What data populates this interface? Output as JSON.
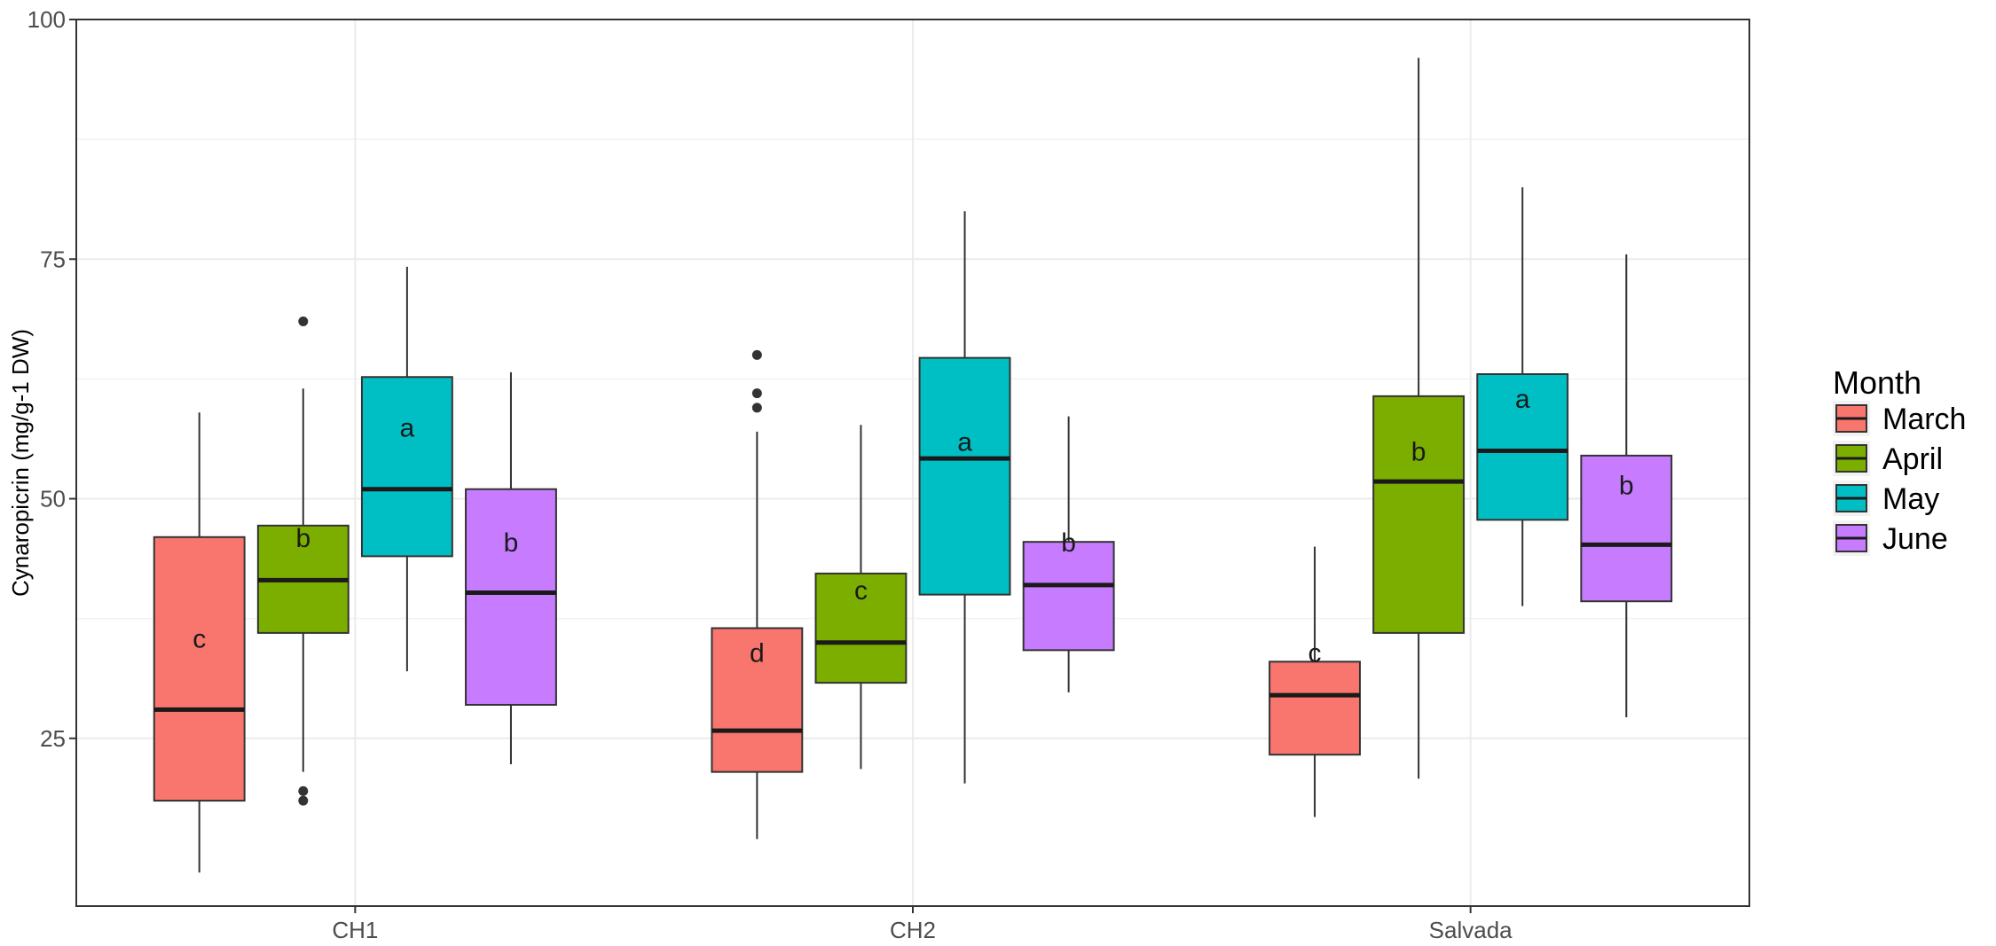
{
  "chart_data": {
    "type": "box",
    "title": "",
    "xlabel": "",
    "ylabel": "Cynaropicrin (mg/g-1 DW)",
    "ylim": [
      7.5,
      100
    ],
    "yticks": [
      25,
      50,
      75,
      100
    ],
    "categories": [
      "CH1",
      "CH2",
      "Salvada"
    ],
    "legend": {
      "title": "Month",
      "position": "right"
    },
    "series": [
      {
        "name": "March",
        "color": "#f8766d",
        "boxes": [
          {
            "whisker_low": 11,
            "q1": 18.5,
            "median": 28,
            "q3": 46,
            "whisker_high": 59,
            "outliers": [],
            "letter": "c",
            "letter_y": 35.5
          },
          {
            "whisker_low": 14.5,
            "q1": 21.5,
            "median": 25.8,
            "q3": 36.5,
            "whisker_high": 57,
            "outliers": [
              59.5,
              61,
              65
            ],
            "letter": "d",
            "letter_y": 34
          },
          {
            "whisker_low": 16.8,
            "q1": 23.3,
            "median": 29.5,
            "q3": 33,
            "whisker_high": 45,
            "outliers": [],
            "letter": "c",
            "letter_y": 34
          }
        ]
      },
      {
        "name": "April",
        "color": "#7cae00",
        "boxes": [
          {
            "whisker_low": 21.5,
            "q1": 36,
            "median": 41.5,
            "q3": 47.2,
            "whisker_high": 61.5,
            "outliers": [
              18.5,
              19.5,
              68.5
            ],
            "letter": "b",
            "letter_y": 46
          },
          {
            "whisker_low": 21.8,
            "q1": 30.8,
            "median": 35,
            "q3": 42.2,
            "whisker_high": 57.7,
            "outliers": [],
            "letter": "c",
            "letter_y": 40.5
          },
          {
            "whisker_low": 20.8,
            "q1": 36,
            "median": 51.8,
            "q3": 60.7,
            "whisker_high": 96,
            "outliers": [],
            "letter": "b",
            "letter_y": 55
          }
        ]
      },
      {
        "name": "May",
        "color": "#00bfc4",
        "boxes": [
          {
            "whisker_low": 32,
            "q1": 44,
            "median": 51,
            "q3": 62.7,
            "whisker_high": 74.2,
            "outliers": [],
            "letter": "a",
            "letter_y": 57.5
          },
          {
            "whisker_low": 20.3,
            "q1": 40,
            "median": 54.2,
            "q3": 64.7,
            "whisker_high": 80,
            "outliers": [],
            "letter": "a",
            "letter_y": 56
          },
          {
            "whisker_low": 38.8,
            "q1": 47.8,
            "median": 55,
            "q3": 63,
            "whisker_high": 82.5,
            "outliers": [],
            "letter": "a",
            "letter_y": 60.5
          }
        ]
      },
      {
        "name": "June",
        "color": "#c77cff",
        "boxes": [
          {
            "whisker_low": 22.3,
            "q1": 28.5,
            "median": 40.2,
            "q3": 51,
            "whisker_high": 63.2,
            "outliers": [],
            "letter": "b",
            "letter_y": 45.5
          },
          {
            "whisker_low": 29.8,
            "q1": 34.2,
            "median": 41,
            "q3": 45.5,
            "whisker_high": 58.6,
            "outliers": [],
            "letter": "b",
            "letter_y": 45.5
          },
          {
            "whisker_low": 27.2,
            "q1": 39.3,
            "median": 45.2,
            "q3": 54.5,
            "whisker_high": 75.5,
            "outliers": [],
            "letter": "b",
            "letter_y": 51.5
          }
        ]
      }
    ]
  }
}
